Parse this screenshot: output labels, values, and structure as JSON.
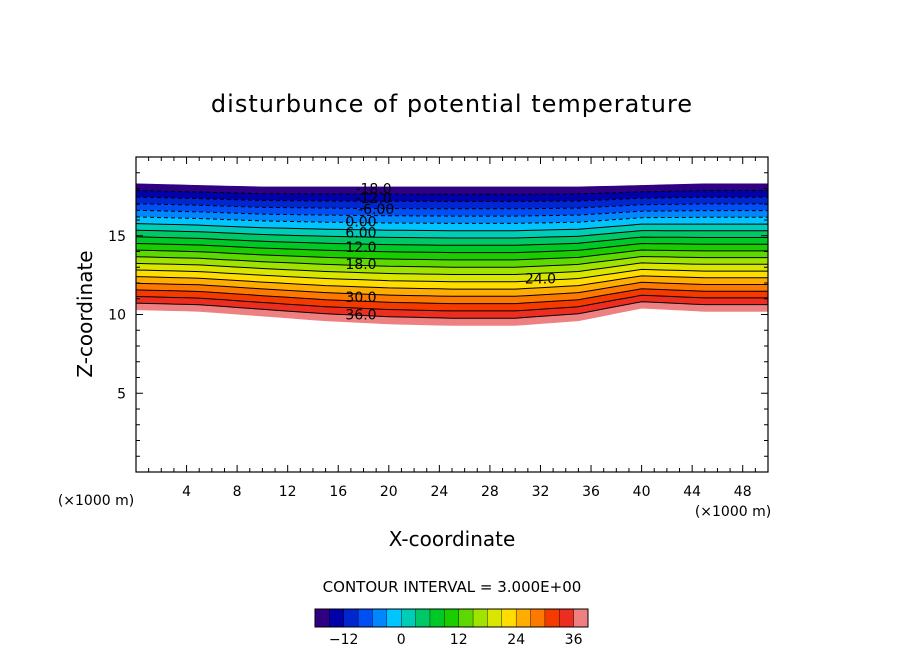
{
  "chart_data": {
    "type": "contour",
    "title": "disturbunce of potential temperature",
    "xlabel": "X-coordinate",
    "ylabel": "Z-coordinate",
    "x_unit": "(×1000 m)",
    "y_unit": "(×1000 m)",
    "xlim": [
      0,
      50
    ],
    "ylim": [
      0,
      20
    ],
    "x_ticks": [
      4,
      8,
      12,
      16,
      20,
      24,
      28,
      32,
      36,
      40,
      44,
      48
    ],
    "y_ticks": [
      5,
      10,
      15
    ],
    "contour_interval_text": "CONTOUR INTERVAL = 3.000E+00",
    "colorbar": {
      "min": -18,
      "max": 39,
      "tick_values": [
        -12,
        0,
        12,
        24,
        36
      ],
      "tick_labels": [
        "−12",
        "0",
        "12",
        "24",
        "36"
      ]
    },
    "field": {
      "top_z": [
        18.3,
        18.2,
        18.1,
        18.1,
        18.1,
        18.1,
        18.1,
        18.1,
        18.2,
        18.3,
        18.3
      ],
      "bottom_z": [
        10.3,
        10.2,
        9.9,
        9.6,
        9.4,
        9.3,
        9.3,
        9.6,
        10.4,
        10.2,
        10.2
      ],
      "profile_x": [
        0,
        5,
        10,
        15,
        20,
        25,
        30,
        35,
        40,
        45,
        50
      ],
      "min_value": -18,
      "max_value": 39
    },
    "contour_labels": [
      {
        "text": "-18.0",
        "x": 18.8,
        "z": 18.0
      },
      {
        "text": "-12.0",
        "x": 18.8,
        "z": 17.4
      },
      {
        "text": "-6.00",
        "x": 19.0,
        "z": 16.7
      },
      {
        "text": "0.00",
        "x": 17.8,
        "z": 15.9
      },
      {
        "text": "6.00",
        "x": 17.8,
        "z": 15.2
      },
      {
        "text": "12.0",
        "x": 17.8,
        "z": 14.3
      },
      {
        "text": "18.0",
        "x": 17.8,
        "z": 13.2
      },
      {
        "text": "24.0",
        "x": 32.0,
        "z": 12.3
      },
      {
        "text": "30.0",
        "x": 17.8,
        "z": 11.1
      },
      {
        "text": "36.0",
        "x": 17.8,
        "z": 10.0
      }
    ]
  }
}
